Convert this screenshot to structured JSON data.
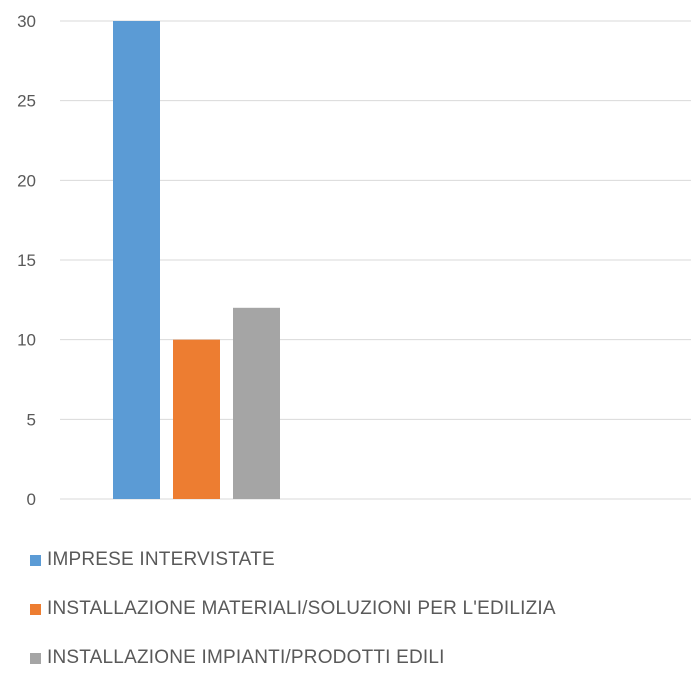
{
  "chart_data": {
    "type": "bar",
    "categories": [
      ""
    ],
    "series": [
      {
        "name": "IMPRESE INTERVISTATE",
        "values": [
          30
        ],
        "color": "#5B9BD5"
      },
      {
        "name": "INSTALLAZIONE MATERIALI/SOLUZIONI PER L'EDILIZIA",
        "values": [
          10
        ],
        "color": "#ED7D31"
      },
      {
        "name": "INSTALLAZIONE IMPIANTI/PRODOTTI EDILI",
        "values": [
          12
        ],
        "color": "#A5A5A5"
      }
    ],
    "yticks": [
      0,
      5,
      10,
      15,
      20,
      25,
      30
    ],
    "ylim": [
      0,
      30
    ],
    "grid": true,
    "legend_position": "bottom-left",
    "title": "",
    "xlabel": "",
    "ylabel": ""
  }
}
